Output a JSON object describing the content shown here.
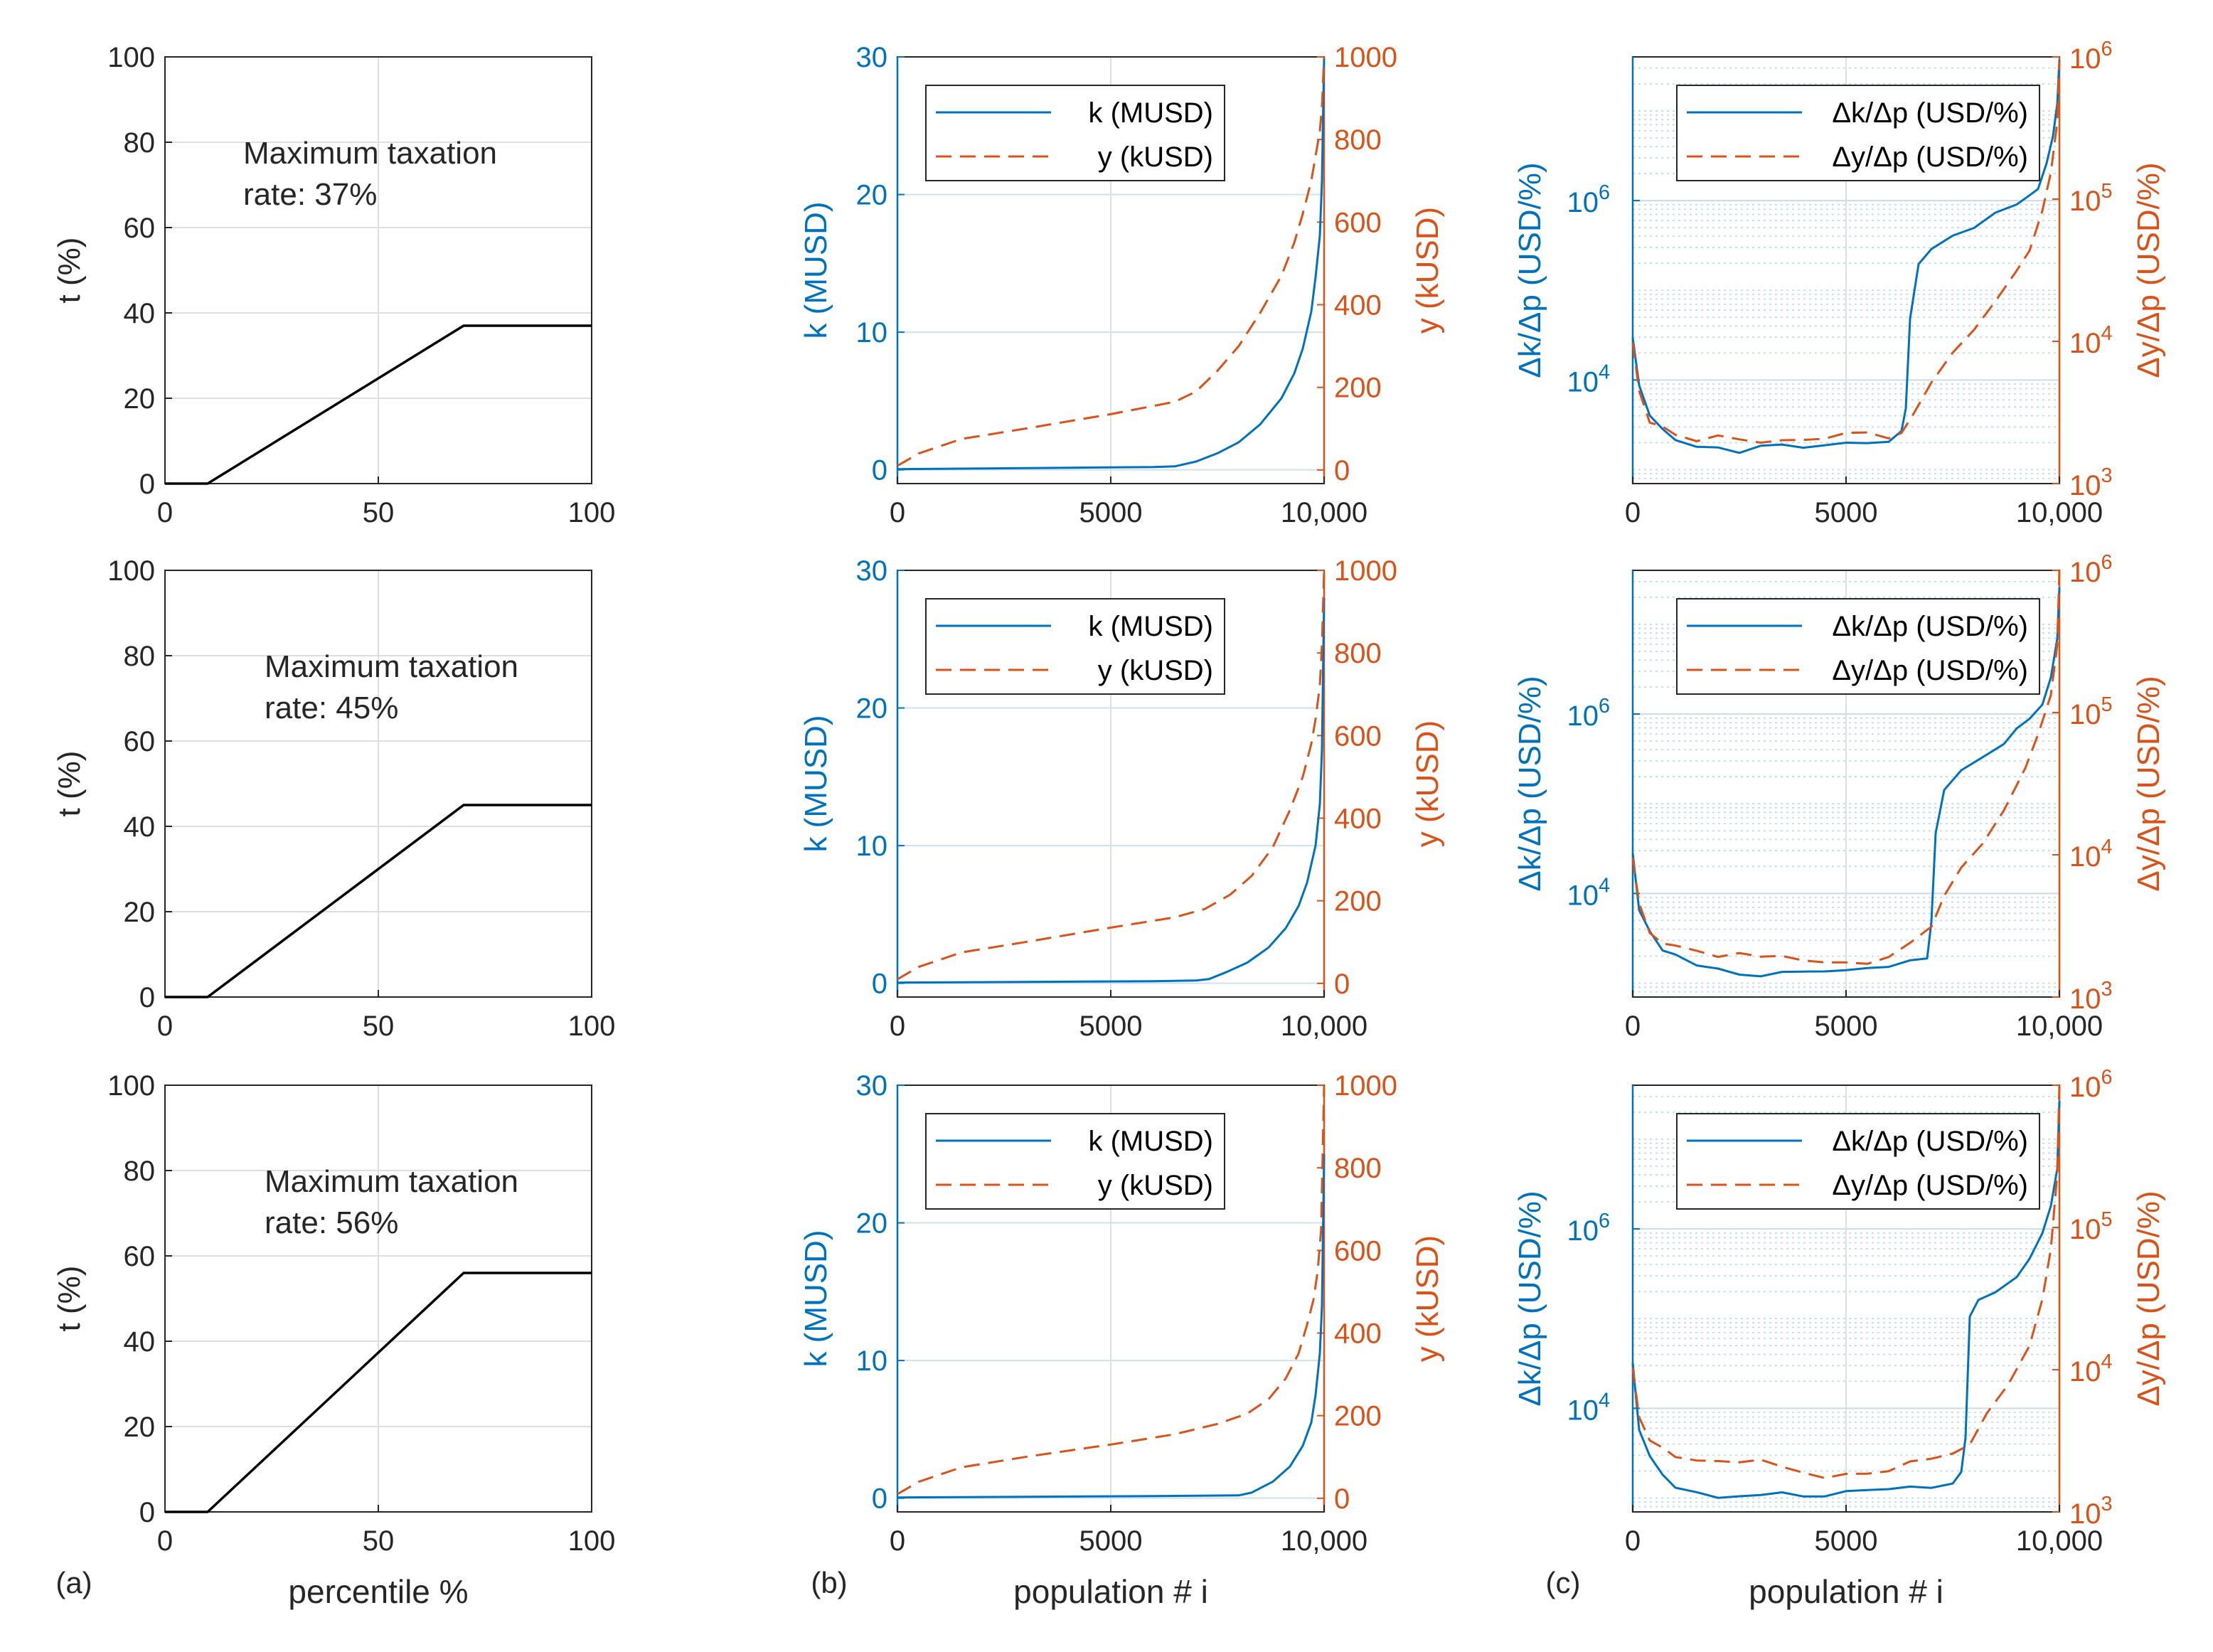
{
  "colors": {
    "blue": "#0072BD",
    "orange": "#D95319",
    "black": "#000000",
    "grid": "#DFDFDF",
    "legend_border": "#262626"
  },
  "panel_labels": [
    "(a)",
    "(b)",
    "(c)"
  ],
  "chart_data": [
    {
      "type": "line",
      "column": "a",
      "row": 0,
      "title": "",
      "xlabel": "",
      "ylabel": "t (%)",
      "xlim": [
        0,
        100
      ],
      "ylim": [
        0,
        100
      ],
      "xticks": [
        "0",
        "50",
        "100"
      ],
      "yticks": [
        "0",
        "20",
        "40",
        "60",
        "80",
        "100"
      ],
      "grid": true,
      "annotation": [
        "Maximum taxation",
        "rate: 37%"
      ],
      "series": [
        {
          "x": [
            0,
            10,
            70,
            100
          ],
          "y": [
            0,
            0,
            37,
            37
          ]
        }
      ]
    },
    {
      "type": "line",
      "column": "a",
      "row": 1,
      "title": "",
      "xlabel": "",
      "ylabel": "t (%)",
      "xlim": [
        0,
        100
      ],
      "ylim": [
        0,
        100
      ],
      "xticks": [
        "0",
        "50",
        "100"
      ],
      "yticks": [
        "0",
        "20",
        "40",
        "60",
        "80",
        "100"
      ],
      "grid": true,
      "annotation": [
        "Maximum taxation",
        "rate: 45%"
      ],
      "series": [
        {
          "x": [
            0,
            10,
            70,
            100
          ],
          "y": [
            0,
            0,
            45,
            45
          ]
        }
      ]
    },
    {
      "type": "line",
      "column": "a",
      "row": 2,
      "title": "",
      "xlabel": "percentile %",
      "ylabel": "t (%)",
      "xlim": [
        0,
        100
      ],
      "ylim": [
        0,
        100
      ],
      "xticks": [
        "0",
        "50",
        "100"
      ],
      "yticks": [
        "0",
        "20",
        "40",
        "60",
        "80",
        "100"
      ],
      "grid": true,
      "annotation": [
        "Maximum taxation",
        "rate: 56%"
      ],
      "series": [
        {
          "x": [
            0,
            10,
            70,
            100
          ],
          "y": [
            0,
            0,
            56,
            56
          ]
        }
      ]
    },
    {
      "type": "line",
      "column": "b",
      "row": 0,
      "title": "",
      "xlabel": "",
      "ylabel": "k (MUSD)",
      "y2label": "y (kUSD)",
      "xlim": [
        0,
        10000
      ],
      "ylim": [
        -1,
        30
      ],
      "y2lim": [
        -33,
        1000
      ],
      "xticks": [
        "0",
        "5000",
        "10,000"
      ],
      "yticks": [
        "0",
        "10",
        "20",
        "30"
      ],
      "y2ticks": [
        "0",
        "200",
        "400",
        "600",
        "800",
        "1000"
      ],
      "grid": true,
      "legend_position": "top-left",
      "series": [
        {
          "name": "k (MUSD)",
          "axis": "left",
          "style": "solid",
          "x": [
            0,
            2000,
            4000,
            6000,
            6500,
            7000,
            7500,
            8000,
            8500,
            9000,
            9300,
            9500,
            9700,
            9800,
            9900,
            9950,
            10000
          ],
          "y": [
            0.05,
            0.1,
            0.15,
            0.2,
            0.25,
            0.6,
            1.2,
            2.0,
            3.3,
            5.2,
            7.0,
            8.8,
            11.5,
            14,
            17,
            21,
            30
          ]
        },
        {
          "name": "y (kUSD)",
          "axis": "right",
          "style": "dashed",
          "x": [
            0,
            500,
            1500,
            3000,
            5000,
            6500,
            7000,
            7500,
            8000,
            8500,
            9000,
            9300,
            9500,
            9700,
            9800,
            9900,
            9950,
            10000
          ],
          "y": [
            10,
            40,
            75,
            100,
            135,
            165,
            190,
            240,
            300,
            380,
            470,
            550,
            620,
            700,
            760,
            820,
            880,
            1000
          ]
        }
      ]
    },
    {
      "type": "line",
      "column": "b",
      "row": 1,
      "title": "",
      "xlabel": "",
      "ylabel": "k (MUSD)",
      "y2label": "y (kUSD)",
      "xlim": [
        0,
        10000
      ],
      "ylim": [
        -1,
        30
      ],
      "y2lim": [
        -33,
        1000
      ],
      "xticks": [
        "0",
        "5000",
        "10,000"
      ],
      "yticks": [
        "0",
        "10",
        "20",
        "30"
      ],
      "y2ticks": [
        "0",
        "200",
        "400",
        "600",
        "800",
        "1000"
      ],
      "grid": true,
      "legend_position": "top-left",
      "series": [
        {
          "name": "k (MUSD)",
          "axis": "left",
          "style": "solid",
          "x": [
            0,
            3000,
            6000,
            7000,
            7300,
            7700,
            8200,
            8700,
            9100,
            9400,
            9600,
            9800,
            9900,
            9950,
            10000
          ],
          "y": [
            0.05,
            0.1,
            0.15,
            0.2,
            0.3,
            0.8,
            1.5,
            2.6,
            4.0,
            5.6,
            7.3,
            10,
            13,
            17,
            28
          ]
        },
        {
          "name": "y (kUSD)",
          "axis": "right",
          "style": "dashed",
          "x": [
            0,
            500,
            1500,
            3000,
            5000,
            6500,
            7200,
            7800,
            8300,
            8800,
            9200,
            9500,
            9700,
            9800,
            9900,
            9950,
            10000
          ],
          "y": [
            10,
            40,
            75,
            100,
            135,
            160,
            180,
            215,
            260,
            330,
            420,
            500,
            580,
            640,
            720,
            820,
            1000
          ]
        }
      ]
    },
    {
      "type": "line",
      "column": "b",
      "row": 2,
      "title": "",
      "xlabel": "population # i",
      "ylabel": "k (MUSD)",
      "y2label": "y (kUSD)",
      "xlim": [
        0,
        10000
      ],
      "ylim": [
        -1,
        30
      ],
      "y2lim": [
        -33,
        1000
      ],
      "xticks": [
        "0",
        "5000",
        "10,000"
      ],
      "yticks": [
        "0",
        "10",
        "20",
        "30"
      ],
      "y2ticks": [
        "0",
        "200",
        "400",
        "600",
        "800",
        "1000"
      ],
      "grid": true,
      "legend_position": "top-left",
      "series": [
        {
          "name": "k (MUSD)",
          "axis": "left",
          "style": "solid",
          "x": [
            0,
            3000,
            6000,
            8000,
            8300,
            8800,
            9200,
            9500,
            9700,
            9800,
            9900,
            9950,
            10000
          ],
          "y": [
            0.05,
            0.1,
            0.15,
            0.2,
            0.4,
            1.2,
            2.3,
            3.8,
            5.5,
            7.5,
            10.5,
            14,
            25
          ]
        },
        {
          "name": "y (kUSD)",
          "axis": "right",
          "style": "dashed",
          "x": [
            0,
            500,
            1500,
            3000,
            5000,
            6500,
            7500,
            8200,
            8700,
            9100,
            9400,
            9600,
            9750,
            9850,
            9930,
            10000
          ],
          "y": [
            10,
            40,
            75,
            100,
            130,
            155,
            180,
            205,
            240,
            290,
            350,
            420,
            480,
            550,
            650,
            1000
          ]
        }
      ]
    },
    {
      "type": "line",
      "column": "c",
      "row": 0,
      "title": "",
      "xlabel": "",
      "ylabel": "Δk/Δp (USD/%)",
      "y2label": "Δy/Δp (USD/%)",
      "xlim": [
        0,
        10000
      ],
      "ylim": [
        700,
        40000000
      ],
      "y2lim": [
        1000,
        1000000
      ],
      "yscale": "log",
      "y2scale": "log",
      "xticks": [
        "0",
        "5000",
        "10,000"
      ],
      "yticks": [
        "10^4",
        "10^6"
      ],
      "y2ticks": [
        "10^3",
        "10^4",
        "10^5",
        "10^6"
      ],
      "grid": true,
      "legend_position": "top-right",
      "series": [
        {
          "name": "Δk/Δp (USD/%)",
          "axis": "left",
          "style": "solid",
          "x": [
            0,
            150,
            400,
            700,
            1000,
            1500,
            2000,
            2500,
            3000,
            3500,
            4000,
            4500,
            5000,
            5500,
            6000,
            6300,
            6400,
            6500,
            6700,
            7000,
            7500,
            8000,
            8500,
            9000,
            9300,
            9500,
            9700,
            9850,
            9950,
            10000
          ],
          "y": [
            30000,
            8000,
            4000,
            2800,
            2200,
            1900,
            1800,
            1600,
            1800,
            1900,
            1800,
            1900,
            2000,
            2100,
            2200,
            2500,
            5000,
            50000,
            200000,
            300000,
            400000,
            500000,
            700000,
            900000,
            1100000,
            1400000,
            2500000,
            5000000,
            12000000,
            35000000
          ]
        },
        {
          "name": "Δy/Δp (USD/%)",
          "axis": "right",
          "style": "dashed",
          "x": [
            0,
            150,
            400,
            700,
            1000,
            1500,
            2000,
            2500,
            3000,
            3500,
            4000,
            4500,
            5000,
            5500,
            6000,
            6300,
            6600,
            7000,
            7500,
            8000,
            8500,
            9000,
            9300,
            9600,
            9800,
            9950,
            10000
          ],
          "y": [
            10000,
            4500,
            2800,
            2400,
            2200,
            2100,
            2100,
            2000,
            2000,
            2000,
            2000,
            2100,
            2200,
            2200,
            2200,
            2400,
            3000,
            5000,
            8000,
            12000,
            20000,
            30000,
            45000,
            80000,
            150000,
            350000,
            950000
          ]
        }
      ]
    },
    {
      "type": "line",
      "column": "c",
      "row": 1,
      "title": "",
      "xlabel": "",
      "ylabel": "Δk/Δp (USD/%)",
      "y2label": "Δy/Δp (USD/%)",
      "xlim": [
        0,
        10000
      ],
      "ylim": [
        700,
        40000000
      ],
      "y2lim": [
        1000,
        1000000
      ],
      "yscale": "log",
      "y2scale": "log",
      "xticks": [
        "0",
        "5000",
        "10,000"
      ],
      "yticks": [
        "10^4",
        "10^6"
      ],
      "y2ticks": [
        "10^3",
        "10^4",
        "10^5",
        "10^6"
      ],
      "grid": true,
      "legend_position": "top-right",
      "series": [
        {
          "name": "Δk/Δp (USD/%)",
          "axis": "left",
          "style": "solid",
          "x": [
            0,
            150,
            400,
            700,
            1000,
            1500,
            2000,
            2500,
            3000,
            3500,
            4000,
            4500,
            5000,
            5500,
            6000,
            6500,
            6900,
            7000,
            7100,
            7300,
            7700,
            8200,
            8700,
            9000,
            9300,
            9600,
            9800,
            9950,
            10000
          ],
          "y": [
            30000,
            7000,
            3500,
            2500,
            2000,
            1500,
            1400,
            1300,
            1300,
            1300,
            1400,
            1400,
            1400,
            1500,
            1600,
            1700,
            2000,
            5000,
            50000,
            150000,
            250000,
            350000,
            500000,
            700000,
            900000,
            1300000,
            2500000,
            7000000,
            25000000
          ]
        },
        {
          "name": "Δy/Δp (USD/%)",
          "axis": "right",
          "style": "dashed",
          "x": [
            0,
            150,
            400,
            700,
            1000,
            1500,
            2000,
            2500,
            3000,
            3500,
            4000,
            4500,
            5000,
            5500,
            6000,
            6500,
            7000,
            7300,
            7700,
            8200,
            8700,
            9200,
            9500,
            9800,
            9950,
            10000
          ],
          "y": [
            10000,
            4500,
            2800,
            2400,
            2200,
            2100,
            2000,
            2000,
            1900,
            1900,
            1800,
            1800,
            1700,
            1800,
            2000,
            2300,
            3000,
            5000,
            8000,
            12000,
            20000,
            40000,
            70000,
            130000,
            300000,
            1000000
          ]
        }
      ]
    },
    {
      "type": "line",
      "column": "c",
      "row": 2,
      "title": "",
      "xlabel": "population # i",
      "ylabel": "Δk/Δp (USD/%)",
      "y2label": "Δy/Δp (USD/%)",
      "xlim": [
        0,
        10000
      ],
      "ylim": [
        700,
        40000000
      ],
      "y2lim": [
        1000,
        1000000
      ],
      "yscale": "log",
      "y2scale": "log",
      "xticks": [
        "0",
        "5000",
        "10,000"
      ],
      "yticks": [
        "10^4",
        "10^6"
      ],
      "y2ticks": [
        "10^3",
        "10^4",
        "10^5",
        "10^6"
      ],
      "grid": true,
      "legend_position": "top-right",
      "series": [
        {
          "name": "Δk/Δp (USD/%)",
          "axis": "left",
          "style": "solid",
          "x": [
            0,
            150,
            400,
            700,
            1000,
            1500,
            2000,
            2500,
            3000,
            3500,
            4000,
            4500,
            5000,
            5500,
            6000,
            6500,
            7000,
            7500,
            7700,
            7800,
            7900,
            8100,
            8500,
            9000,
            9300,
            9600,
            9800,
            9950,
            10000
          ],
          "y": [
            30000,
            6000,
            3000,
            1800,
            1400,
            1200,
            1100,
            1100,
            1100,
            1100,
            1100,
            1100,
            1200,
            1200,
            1300,
            1300,
            1400,
            1500,
            1800,
            5000,
            100000,
            150000,
            200000,
            300000,
            500000,
            900000,
            1800000,
            5000000,
            25000000
          ]
        },
        {
          "name": "Δy/Δp (USD/%)",
          "axis": "right",
          "style": "dashed",
          "x": [
            0,
            150,
            400,
            700,
            1000,
            1500,
            2000,
            2500,
            3000,
            3500,
            4000,
            4500,
            5000,
            5500,
            6000,
            6500,
            7000,
            7500,
            7900,
            8300,
            8800,
            9300,
            9600,
            9800,
            9950,
            10000
          ],
          "y": [
            10000,
            4500,
            3000,
            2700,
            2500,
            2400,
            2300,
            2200,
            2200,
            2000,
            1900,
            1800,
            1800,
            1900,
            2000,
            2200,
            2300,
            2500,
            3000,
            5000,
            8000,
            15000,
            30000,
            70000,
            250000,
            1000000
          ]
        }
      ]
    }
  ]
}
